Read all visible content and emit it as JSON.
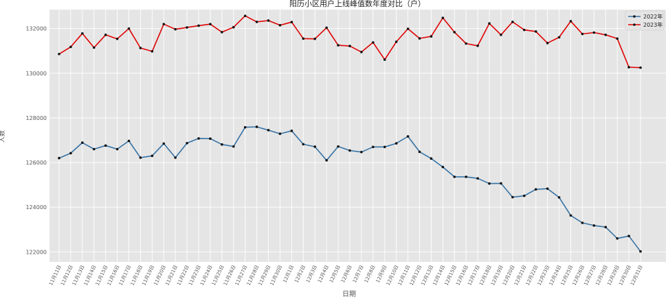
{
  "chart_data": {
    "type": "line",
    "title": "阳历小区用户上线峰值数年度对比（户）",
    "xlabel": "日期",
    "ylabel": "人数",
    "categories": [
      "11月11日",
      "11月12日",
      "11月13日",
      "11月14日",
      "11月15日",
      "11月16日",
      "11月17日",
      "11月18日",
      "11月19日",
      "11月20日",
      "11月21日",
      "11月22日",
      "11月23日",
      "11月24日",
      "11月25日",
      "11月26日",
      "11月27日",
      "11月28日",
      "11月29日",
      "11月30日",
      "12月1日",
      "12月2日",
      "12月3日",
      "12月4日",
      "12月5日",
      "12月6日",
      "12月7日",
      "12月8日",
      "12月9日",
      "12月10日",
      "12月11日",
      "12月12日",
      "12月13日",
      "12月14日",
      "12月15日",
      "12月16日",
      "12月17日",
      "12月18日",
      "12月19日",
      "12月20日",
      "12月21日",
      "12月22日",
      "12月23日",
      "12月24日",
      "12月25日",
      "12月26日",
      "12月27日",
      "12月28日",
      "12月29日",
      "12月30日",
      "12月31日"
    ],
    "series": [
      {
        "name": "2022年",
        "color": "#3572a5",
        "values": [
          126200,
          126420,
          126890,
          126600,
          126760,
          126600,
          126970,
          126220,
          126300,
          126850,
          126220,
          126870,
          127080,
          127070,
          126810,
          126720,
          127580,
          127600,
          127450,
          127290,
          127420,
          126820,
          126710,
          126100,
          126720,
          126540,
          126470,
          126700,
          126700,
          126860,
          127170,
          126480,
          126180,
          125800,
          125360,
          125360,
          125290,
          125060,
          125070,
          124450,
          124510,
          124800,
          124830,
          124440,
          123630,
          123300,
          123180,
          123110,
          122600,
          122710,
          122020
        ]
      },
      {
        "name": "2023年",
        "color": "#e00000",
        "values": [
          130860,
          131180,
          131780,
          131150,
          131720,
          131540,
          132000,
          131130,
          130980,
          132200,
          131970,
          132050,
          132130,
          132200,
          131840,
          132060,
          132570,
          132300,
          132360,
          132150,
          132290,
          131550,
          131540,
          132040,
          131250,
          131220,
          130950,
          131380,
          130610,
          131410,
          131990,
          131560,
          131650,
          132480,
          131840,
          131330,
          131230,
          132230,
          131720,
          132300,
          131940,
          131870,
          131350,
          131610,
          132330,
          131760,
          131820,
          131720,
          131550,
          130270,
          130250
        ]
      }
    ],
    "ylim": [
      121550,
      132850
    ],
    "yticks": [
      122000,
      124000,
      126000,
      128000,
      130000,
      132000
    ],
    "grid": true,
    "legend_position": "top-right",
    "background_color": "#e5e5e5",
    "grid_color": "#ffffff",
    "axis_text_color": "#555555"
  }
}
